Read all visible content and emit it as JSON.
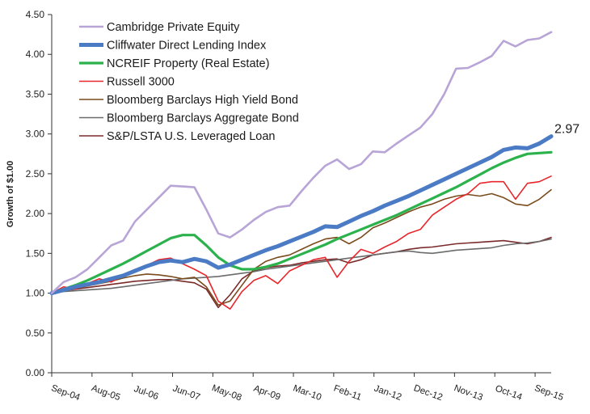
{
  "chart_data": {
    "type": "line",
    "ylabel": "Growth of $1.00",
    "xlabel": "",
    "ylim": [
      0,
      4.5
    ],
    "y_ticks": [
      "0.00",
      "0.50",
      "1.00",
      "1.50",
      "2.00",
      "2.50",
      "3.00",
      "3.50",
      "4.00",
      "4.50"
    ],
    "x_tick_labels": [
      "Sep-04",
      "Aug-05",
      "Jul-06",
      "Jun-07",
      "May-08",
      "Apr-09",
      "Mar-10",
      "Feb-11",
      "Jan-12",
      "Dec-12",
      "Nov-13",
      "Oct-14",
      "Sep-15"
    ],
    "grid": false,
    "legend_position": "top-left",
    "end_annotation": "2.97",
    "series": [
      {
        "name": "Cambridge Private Equity",
        "color": "#b8a4d6",
        "width": 2.6,
        "values": [
          1.0,
          1.14,
          1.2,
          1.3,
          1.45,
          1.6,
          1.66,
          1.9,
          2.05,
          2.2,
          2.35,
          2.34,
          2.33,
          2.05,
          1.75,
          1.7,
          1.8,
          1.92,
          2.02,
          2.08,
          2.1,
          2.28,
          2.45,
          2.6,
          2.68,
          2.56,
          2.62,
          2.78,
          2.77,
          2.88,
          2.98,
          3.08,
          3.25,
          3.5,
          3.82,
          3.83,
          3.9,
          3.98,
          4.17,
          4.1,
          4.18,
          4.2,
          4.28
        ]
      },
      {
        "name": "Cliffwater Direct Lending Index",
        "color": "#4a7bc4",
        "width": 5,
        "values": [
          1.0,
          1.04,
          1.08,
          1.11,
          1.14,
          1.18,
          1.22,
          1.28,
          1.34,
          1.39,
          1.41,
          1.39,
          1.43,
          1.4,
          1.32,
          1.36,
          1.42,
          1.48,
          1.54,
          1.59,
          1.65,
          1.71,
          1.77,
          1.84,
          1.83,
          1.9,
          1.97,
          2.03,
          2.1,
          2.16,
          2.22,
          2.29,
          2.36,
          2.43,
          2.5,
          2.57,
          2.64,
          2.71,
          2.8,
          2.83,
          2.82,
          2.88,
          2.97
        ]
      },
      {
        "name": "NCREIF Property (Real Estate)",
        "color": "#2bb24c",
        "width": 3.2,
        "values": [
          1.0,
          1.05,
          1.1,
          1.16,
          1.23,
          1.3,
          1.37,
          1.45,
          1.53,
          1.61,
          1.69,
          1.73,
          1.73,
          1.6,
          1.45,
          1.35,
          1.3,
          1.3,
          1.33,
          1.37,
          1.43,
          1.49,
          1.55,
          1.61,
          1.68,
          1.74,
          1.8,
          1.86,
          1.92,
          1.98,
          2.05,
          2.12,
          2.19,
          2.26,
          2.33,
          2.41,
          2.49,
          2.57,
          2.64,
          2.7,
          2.75,
          2.76,
          2.77
        ]
      },
      {
        "name": "Russell 3000",
        "color": "#e8262b",
        "width": 1.6,
        "values": [
          1.0,
          1.08,
          1.05,
          1.12,
          1.18,
          1.14,
          1.22,
          1.28,
          1.35,
          1.42,
          1.44,
          1.37,
          1.3,
          1.22,
          0.9,
          0.8,
          1.02,
          1.16,
          1.22,
          1.12,
          1.28,
          1.35,
          1.42,
          1.45,
          1.2,
          1.4,
          1.55,
          1.5,
          1.58,
          1.65,
          1.75,
          1.8,
          1.98,
          2.08,
          2.18,
          2.25,
          2.38,
          2.4,
          2.4,
          2.18,
          2.38,
          2.4,
          2.47
        ]
      },
      {
        "name": "Bloomberg Barclays High Yield Bond",
        "color": "#7a4b1c",
        "width": 1.6,
        "values": [
          1.0,
          1.03,
          1.06,
          1.09,
          1.12,
          1.15,
          1.19,
          1.22,
          1.24,
          1.23,
          1.21,
          1.18,
          1.2,
          1.08,
          0.85,
          0.9,
          1.1,
          1.3,
          1.4,
          1.45,
          1.48,
          1.55,
          1.62,
          1.68,
          1.7,
          1.62,
          1.7,
          1.82,
          1.88,
          1.95,
          2.02,
          2.08,
          2.12,
          2.18,
          2.22,
          2.24,
          2.22,
          2.25,
          2.2,
          2.12,
          2.1,
          2.18,
          2.3
        ]
      },
      {
        "name": "Bloomberg Barclays Aggregate Bond",
        "color": "#6b6b6b",
        "width": 1.6,
        "values": [
          1.0,
          1.02,
          1.03,
          1.04,
          1.05,
          1.06,
          1.08,
          1.1,
          1.12,
          1.14,
          1.16,
          1.18,
          1.19,
          1.2,
          1.21,
          1.23,
          1.25,
          1.27,
          1.3,
          1.32,
          1.34,
          1.36,
          1.38,
          1.4,
          1.42,
          1.44,
          1.46,
          1.48,
          1.5,
          1.52,
          1.53,
          1.51,
          1.5,
          1.52,
          1.54,
          1.55,
          1.56,
          1.57,
          1.6,
          1.62,
          1.63,
          1.65,
          1.68
        ]
      },
      {
        "name": "S&P/LSTA U.S. Leveraged Loan",
        "color": "#7a2a2a",
        "width": 1.6,
        "values": [
          1.0,
          1.03,
          1.05,
          1.07,
          1.09,
          1.11,
          1.13,
          1.15,
          1.16,
          1.17,
          1.17,
          1.15,
          1.13,
          1.05,
          0.82,
          0.98,
          1.18,
          1.28,
          1.32,
          1.34,
          1.35,
          1.38,
          1.4,
          1.42,
          1.43,
          1.38,
          1.42,
          1.48,
          1.5,
          1.52,
          1.55,
          1.57,
          1.58,
          1.6,
          1.62,
          1.63,
          1.64,
          1.65,
          1.66,
          1.64,
          1.62,
          1.65,
          1.7
        ]
      }
    ]
  }
}
